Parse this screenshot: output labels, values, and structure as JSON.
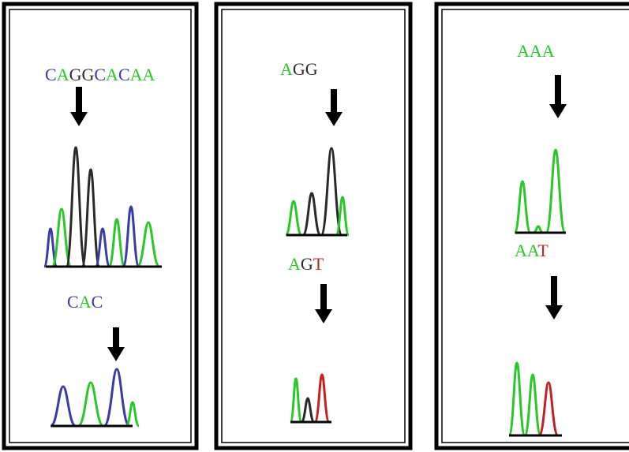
{
  "panels": [
    {
      "sequences": [
        {
          "letters": [
            "C",
            "A",
            "G",
            "G",
            "C",
            "A",
            "C",
            "A",
            "A"
          ]
        },
        {
          "letters": [
            "C",
            "A",
            "C"
          ]
        }
      ]
    },
    {
      "sequences": [
        {
          "letters": [
            "A",
            "G",
            "G"
          ]
        },
        {
          "letters": [
            "A",
            "G",
            "T"
          ]
        }
      ]
    },
    {
      "sequences": [
        {
          "letters": [
            "A",
            "A",
            "A"
          ]
        },
        {
          "letters": [
            "A",
            "A",
            "T"
          ]
        }
      ]
    }
  ]
}
